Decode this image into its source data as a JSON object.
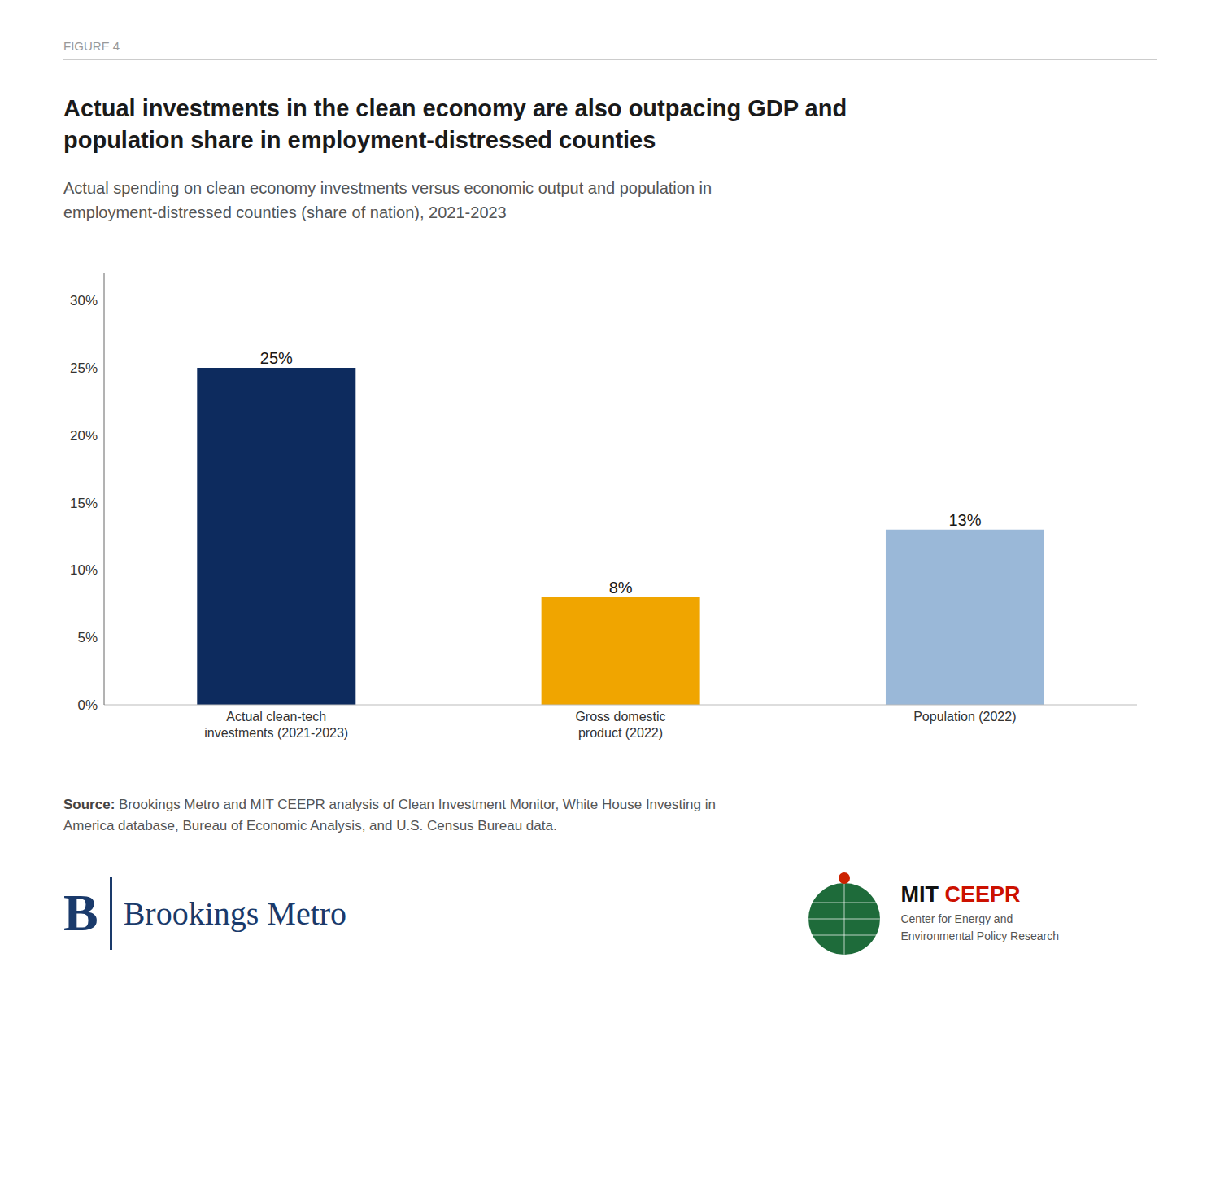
{
  "chart_data": {
    "type": "bar",
    "title": "Actual investments in the clean economy are also outpacing GDP and\npopulation share in employment-distressed counties",
    "subtitle": "Actual spending on clean economy investments versus economic output and population in\nemployment-distressed counties (share of nation), 2021-2023",
    "categories": [
      "Actual clean-tech\ninvestments (2021-2023)",
      "Gross domestic\nproduct (2022)",
      "Population (2022)"
    ],
    "values": [
      25,
      8,
      13
    ],
    "value_labels": [
      "25%",
      "8%",
      "13%"
    ],
    "data_labels": true,
    "colors": [
      "#0d2b5e",
      "#f0a500",
      "#9ab8d8"
    ],
    "ylim": [
      0,
      32
    ],
    "yticks": [
      {
        "value": 0,
        "label": "0%"
      },
      {
        "value": 5,
        "label": "5%"
      },
      {
        "value": 10,
        "label": "10%"
      },
      {
        "value": 15,
        "label": "15%"
      },
      {
        "value": 20,
        "label": "20%"
      },
      {
        "value": 25,
        "label": "25%"
      },
      {
        "value": 30,
        "label": "30%"
      }
    ],
    "grid": false,
    "annotations": [
      "FIGURE 4",
      "Source:",
      "Brookings Metro and MIT CEEPR analysis of Clean Investment Monitor, White House Investing in\nAmerica database, Bureau of Economic Analysis, and U.S. Census Bureau data.",
      "B",
      "Brookings Metro",
      "MIT",
      "CEEPR",
      "Center for Energy and\nEnvironmental Policy Research"
    ]
  }
}
